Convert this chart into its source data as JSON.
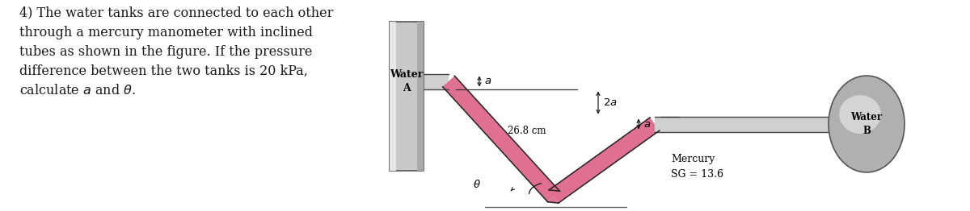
{
  "bg": "#ffffff",
  "text_problem": "4) The water tanks are connected to each other\nthrough a mercury manometer with inclined\ntubes as shown in the figure. If the pressure\ndifference between the two tanks is 20 kPa,\ncalculate $a$ and $\\theta$.",
  "text_fontsize": 11.5,
  "text_color": "#1a1a1a",
  "tank_A_face": "#c8c8c8",
  "tank_A_edge": "#555555",
  "tank_B_face": "#b0b0b0",
  "tank_B_edge": "#555555",
  "pipe_face": "#d0d0d0",
  "pipe_edge": "#444444",
  "mercury_color": "#e07090",
  "tube_edge": "#222222",
  "dim_color": "#111111",
  "label_WaterA": "Water\nA",
  "label_WaterB": "Water\nB",
  "label_a_top": "$a$",
  "label_2a": "$2a$",
  "label_a_right": "$a$",
  "label_26cm": "26.8 cm",
  "label_theta": "$\\theta$",
  "label_mercury": "Mercury\nSG = 13.6",
  "figw": 12.0,
  "figh": 2.62,
  "dpi": 100
}
